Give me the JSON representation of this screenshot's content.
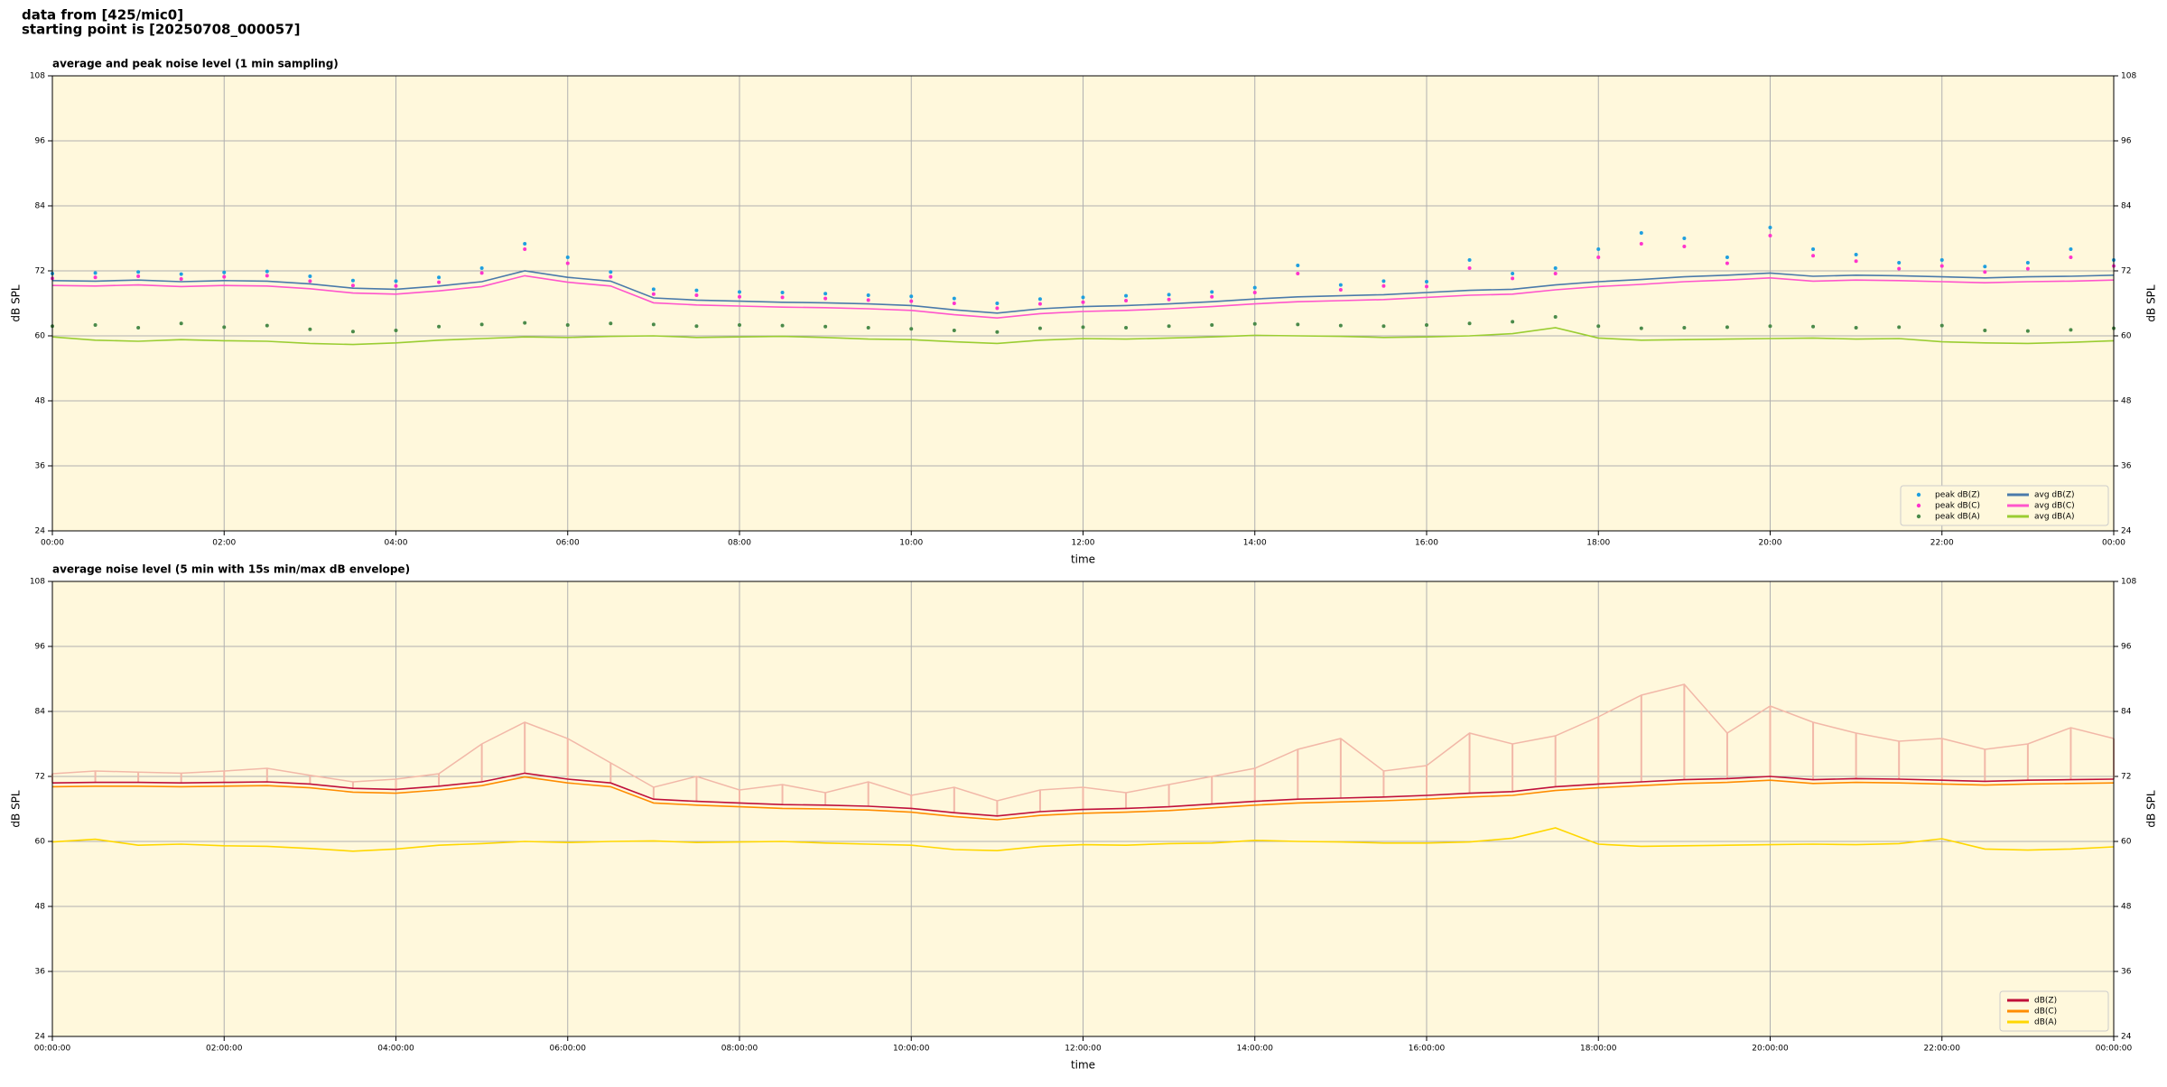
{
  "header": [
    "data from [425/mic0]",
    "starting point is [20250708_000057]"
  ],
  "chart_data": [
    {
      "type": "line",
      "title": "average and peak noise level (1 min sampling)",
      "xlabel": "time",
      "ylabel": "dB SPL",
      "x": [
        0,
        0.5,
        1,
        1.5,
        2,
        2.5,
        3,
        3.5,
        4,
        4.5,
        5,
        5.5,
        6,
        6.5,
        7,
        7.5,
        8,
        8.5,
        9,
        9.5,
        10,
        10.5,
        11,
        11.5,
        12,
        12.5,
        13,
        13.5,
        14,
        14.5,
        15,
        15.5,
        16,
        16.5,
        17,
        17.5,
        18,
        18.5,
        19,
        19.5,
        20,
        20.5,
        21,
        21.5,
        22,
        22.5,
        23,
        23.5,
        24
      ],
      "xlim": [
        0,
        24
      ],
      "xticks": [
        {
          "value": 0,
          "label": "00:00"
        },
        {
          "value": 2,
          "label": "02:00"
        },
        {
          "value": 4,
          "label": "04:00"
        },
        {
          "value": 6,
          "label": "06:00"
        },
        {
          "value": 8,
          "label": "08:00"
        },
        {
          "value": 10,
          "label": "10:00"
        },
        {
          "value": 12,
          "label": "12:00"
        },
        {
          "value": 14,
          "label": "14:00"
        },
        {
          "value": 16,
          "label": "16:00"
        },
        {
          "value": 18,
          "label": "18:00"
        },
        {
          "value": 20,
          "label": "20:00"
        },
        {
          "value": 22,
          "label": "22:00"
        },
        {
          "value": 24,
          "label": "00:00"
        }
      ],
      "ylim": [
        24,
        108
      ],
      "yticks": [
        24,
        36,
        48,
        60,
        72,
        84,
        96,
        108
      ],
      "grid": true,
      "background": "#fff8dc",
      "legend": "lower right",
      "legend_columns": 2,
      "series": [
        {
          "name": "peak dB(Z)",
          "style": "dots",
          "color": "#1f9fdf",
          "values": [
            71.5,
            71.6,
            71.8,
            71.4,
            71.7,
            71.9,
            71.0,
            70.2,
            70.1,
            70.8,
            72.5,
            77.0,
            74.5,
            71.8,
            68.6,
            68.4,
            68.1,
            68.0,
            67.8,
            67.5,
            67.3,
            66.9,
            66.0,
            66.8,
            67.1,
            67.4,
            67.6,
            68.1,
            68.9,
            73.0,
            69.4,
            70.1,
            70.0,
            74.0,
            71.5,
            72.5,
            76.0,
            79.0,
            78.0,
            74.5,
            80.0,
            76.0,
            75.0,
            73.5,
            74.0,
            72.8,
            73.5,
            76.0,
            74.0
          ]
        },
        {
          "name": "peak dB(C)",
          "style": "dots",
          "color": "#ff33cc",
          "values": [
            70.6,
            70.8,
            71.0,
            70.5,
            70.9,
            71.1,
            70.1,
            69.3,
            69.2,
            69.9,
            71.6,
            76.0,
            73.4,
            70.9,
            67.7,
            67.5,
            67.2,
            67.1,
            66.9,
            66.6,
            66.4,
            66.0,
            65.1,
            65.9,
            66.2,
            66.5,
            66.7,
            67.2,
            68.0,
            71.5,
            68.5,
            69.2,
            69.1,
            72.5,
            70.6,
            71.5,
            74.5,
            77.0,
            76.5,
            73.4,
            78.5,
            74.8,
            73.8,
            72.4,
            72.9,
            71.8,
            72.4,
            74.5,
            72.9
          ]
        },
        {
          "name": "peak dB(A)",
          "style": "dots",
          "color": "#4a8a4a",
          "values": [
            61.8,
            62.0,
            61.5,
            62.3,
            61.6,
            61.9,
            61.2,
            60.8,
            61.0,
            61.7,
            62.1,
            62.4,
            62.0,
            62.3,
            62.1,
            61.8,
            62.0,
            61.9,
            61.7,
            61.5,
            61.3,
            61.0,
            60.7,
            61.4,
            61.6,
            61.5,
            61.8,
            62.0,
            62.2,
            62.1,
            61.9,
            61.8,
            62.0,
            62.3,
            62.6,
            63.5,
            61.8,
            61.4,
            61.5,
            61.6,
            61.8,
            61.7,
            61.5,
            61.6,
            61.9,
            61.0,
            60.9,
            61.1,
            61.4
          ]
        },
        {
          "name": "avg dB(Z)",
          "style": "line",
          "color": "#4a7aaa",
          "values": [
            70.2,
            70.1,
            70.3,
            70.0,
            70.2,
            70.1,
            69.6,
            68.8,
            68.6,
            69.2,
            70.0,
            72.0,
            70.8,
            70.1,
            67.0,
            66.6,
            66.4,
            66.2,
            66.1,
            65.9,
            65.6,
            64.8,
            64.2,
            65.0,
            65.4,
            65.6,
            65.9,
            66.3,
            66.8,
            67.2,
            67.4,
            67.6,
            68.0,
            68.4,
            68.6,
            69.4,
            70.0,
            70.4,
            70.9,
            71.2,
            71.6,
            71.0,
            71.2,
            71.1,
            70.9,
            70.7,
            70.9,
            71.0,
            71.2
          ]
        },
        {
          "name": "avg dB(C)",
          "style": "line",
          "color": "#ff55cc",
          "values": [
            69.3,
            69.2,
            69.4,
            69.1,
            69.3,
            69.2,
            68.7,
            67.9,
            67.7,
            68.3,
            69.1,
            71.1,
            69.9,
            69.2,
            66.1,
            65.7,
            65.5,
            65.3,
            65.2,
            65.0,
            64.7,
            63.9,
            63.3,
            64.1,
            64.5,
            64.7,
            65.0,
            65.4,
            65.9,
            66.3,
            66.5,
            66.7,
            67.1,
            67.5,
            67.7,
            68.5,
            69.1,
            69.5,
            70.0,
            70.3,
            70.7,
            70.1,
            70.3,
            70.2,
            70.0,
            69.8,
            70.0,
            70.1,
            70.3
          ]
        },
        {
          "name": "avg dB(A)",
          "style": "line",
          "color": "#9acd32",
          "values": [
            59.8,
            59.2,
            59.0,
            59.3,
            59.1,
            59.0,
            58.6,
            58.4,
            58.7,
            59.2,
            59.5,
            59.8,
            59.7,
            59.9,
            60.0,
            59.7,
            59.8,
            59.9,
            59.7,
            59.4,
            59.3,
            58.9,
            58.6,
            59.2,
            59.5,
            59.4,
            59.6,
            59.8,
            60.1,
            60.0,
            59.9,
            59.7,
            59.8,
            60.0,
            60.4,
            61.5,
            59.6,
            59.2,
            59.3,
            59.4,
            59.5,
            59.6,
            59.4,
            59.5,
            58.9,
            58.7,
            58.6,
            58.8,
            59.1
          ]
        }
      ]
    },
    {
      "type": "line",
      "title": "average noise level (5 min with 15s min/max dB envelope)",
      "xlabel": "time",
      "ylabel": "dB SPL",
      "x": [
        0,
        0.5,
        1,
        1.5,
        2,
        2.5,
        3,
        3.5,
        4,
        4.5,
        5,
        5.5,
        6,
        6.5,
        7,
        7.5,
        8,
        8.5,
        9,
        9.5,
        10,
        10.5,
        11,
        11.5,
        12,
        12.5,
        13,
        13.5,
        14,
        14.5,
        15,
        15.5,
        16,
        16.5,
        17,
        17.5,
        18,
        18.5,
        19,
        19.5,
        20,
        20.5,
        21,
        21.5,
        22,
        22.5,
        23,
        23.5,
        24
      ],
      "xlim": [
        0,
        24
      ],
      "xticks": [
        {
          "value": 0,
          "label": "00:00:00"
        },
        {
          "value": 2,
          "label": "02:00:00"
        },
        {
          "value": 4,
          "label": "04:00:00"
        },
        {
          "value": 6,
          "label": "06:00:00"
        },
        {
          "value": 8,
          "label": "08:00:00"
        },
        {
          "value": 10,
          "label": "10:00:00"
        },
        {
          "value": 12,
          "label": "12:00:00"
        },
        {
          "value": 14,
          "label": "14:00:00"
        },
        {
          "value": 16,
          "label": "16:00:00"
        },
        {
          "value": 18,
          "label": "18:00:00"
        },
        {
          "value": 20,
          "label": "20:00:00"
        },
        {
          "value": 22,
          "label": "22:00:00"
        },
        {
          "value": 24,
          "label": "00:00:00"
        }
      ],
      "ylim": [
        24,
        108
      ],
      "yticks": [
        24,
        36,
        48,
        60,
        72,
        84,
        96,
        108
      ],
      "grid": true,
      "background": "#fff8dc",
      "legend": "lower right",
      "legend_columns": 1,
      "envelope_color": "#f2b8a8",
      "series": [
        {
          "name": "dB(Z)",
          "style": "line",
          "color": "#c0103a",
          "values": [
            70.8,
            70.9,
            70.9,
            70.8,
            70.9,
            71.0,
            70.6,
            69.8,
            69.6,
            70.2,
            71.0,
            72.6,
            71.5,
            70.8,
            67.8,
            67.4,
            67.1,
            66.8,
            66.7,
            66.5,
            66.1,
            65.3,
            64.7,
            65.5,
            65.9,
            66.1,
            66.4,
            66.9,
            67.4,
            67.8,
            68.0,
            68.2,
            68.5,
            68.9,
            69.2,
            70.1,
            70.6,
            71.0,
            71.4,
            71.6,
            72.0,
            71.4,
            71.6,
            71.5,
            71.3,
            71.1,
            71.3,
            71.4,
            71.5
          ],
          "max_values": [
            72.5,
            73.0,
            72.8,
            72.6,
            73.0,
            73.5,
            72.2,
            71.0,
            71.5,
            72.5,
            78.0,
            82.0,
            79.0,
            74.5,
            70.0,
            72.0,
            69.5,
            70.5,
            69.0,
            71.0,
            68.5,
            70.0,
            67.5,
            69.5,
            70.0,
            69.0,
            70.5,
            72.0,
            73.5,
            77.0,
            79.0,
            73.0,
            74.0,
            80.0,
            78.0,
            79.5,
            83.0,
            87.0,
            89.0,
            80.0,
            85.0,
            82.0,
            80.0,
            78.5,
            79.0,
            77.0,
            78.0,
            81.0,
            79.0
          ]
        },
        {
          "name": "dB(C)",
          "style": "line",
          "color": "#ff8c00",
          "values": [
            70.1,
            70.2,
            70.2,
            70.1,
            70.2,
            70.3,
            69.9,
            69.1,
            68.9,
            69.5,
            70.3,
            71.9,
            70.8,
            70.1,
            67.1,
            66.7,
            66.4,
            66.1,
            66.0,
            65.8,
            65.4,
            64.6,
            64.0,
            64.8,
            65.2,
            65.4,
            65.7,
            66.2,
            66.7,
            67.1,
            67.3,
            67.5,
            67.8,
            68.2,
            68.5,
            69.4,
            69.9,
            70.3,
            70.7,
            70.9,
            71.3,
            70.7,
            70.9,
            70.8,
            70.6,
            70.4,
            70.6,
            70.7,
            70.8
          ]
        },
        {
          "name": "dB(A)",
          "style": "line",
          "color": "#ffd700",
          "values": [
            59.9,
            60.4,
            59.3,
            59.5,
            59.2,
            59.1,
            58.7,
            58.2,
            58.6,
            59.3,
            59.6,
            60.0,
            59.8,
            60.0,
            60.1,
            59.8,
            59.9,
            60.0,
            59.7,
            59.5,
            59.3,
            58.5,
            58.3,
            59.1,
            59.4,
            59.3,
            59.6,
            59.7,
            60.2,
            60.0,
            59.9,
            59.7,
            59.7,
            59.9,
            60.6,
            62.5,
            59.5,
            59.1,
            59.2,
            59.3,
            59.4,
            59.5,
            59.4,
            59.6,
            60.5,
            58.6,
            58.4,
            58.6,
            59.0
          ]
        }
      ]
    }
  ]
}
